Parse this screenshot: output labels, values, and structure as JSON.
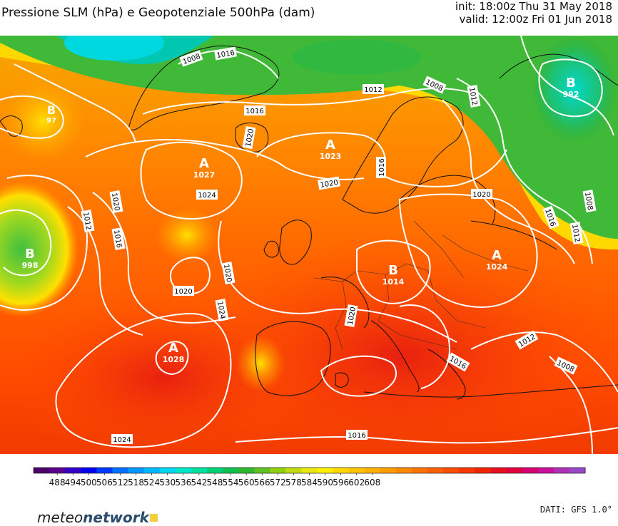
{
  "header": {
    "title": "Pressione SLM (hPa) e Geopotenziale 500hPa (dam)",
    "init": "init: 18:00z Thu 31 May 2018",
    "valid": "valid: 12:00z Fri 01 Jun 2018"
  },
  "pressure_centers": [
    {
      "letter": "B",
      "value": "992"
    },
    {
      "letter": "B",
      "value": "998"
    },
    {
      "letter": "A",
      "value": "1027"
    },
    {
      "letter": "A",
      "value": "1023"
    },
    {
      "letter": "A",
      "value": "1028"
    },
    {
      "letter": "A",
      "value": "1024"
    },
    {
      "letter": "B",
      "value": "1014"
    },
    {
      "letter": "B",
      "value": "97"
    }
  ],
  "contour_labels": [
    "1008",
    "1016",
    "1012",
    "1008",
    "1012",
    "1016",
    "1020",
    "1020",
    "1020",
    "1024",
    "1016",
    "1012",
    "1016",
    "1020",
    "1020",
    "1016",
    "1012",
    "1020",
    "1024",
    "1020",
    "1012",
    "1008",
    "1016",
    "1024",
    "1016",
    "1008"
  ],
  "legend": {
    "ticks": [
      "488",
      "494",
      "500",
      "506",
      "512",
      "518",
      "524",
      "530",
      "536",
      "542",
      "548",
      "554",
      "560",
      "566",
      "572",
      "578",
      "584",
      "590",
      "596",
      "602",
      "608"
    ],
    "colors": [
      "#4a0068",
      "#5a0090",
      "#3400c8",
      "#0000f0",
      "#0038ff",
      "#0070ff",
      "#0098ff",
      "#00b8ff",
      "#00d6f0",
      "#00e6c8",
      "#00e0a0",
      "#00d078",
      "#10c050",
      "#30b830",
      "#60c020",
      "#90d010",
      "#c0dc10",
      "#e8e810",
      "#fff000",
      "#ffd800",
      "#ffc400",
      "#ffb000",
      "#ff9c00",
      "#ff8800",
      "#ff7400",
      "#ff6000",
      "#ff4c00",
      "#f83800",
      "#f02400",
      "#e81020",
      "#e0003c",
      "#d80070",
      "#c81098",
      "#b030b8",
      "#9848c8"
    ]
  },
  "footer": {
    "logo_regular": "meteo",
    "logo_bold": "network",
    "source": "DATI: GFS 1.0°"
  }
}
